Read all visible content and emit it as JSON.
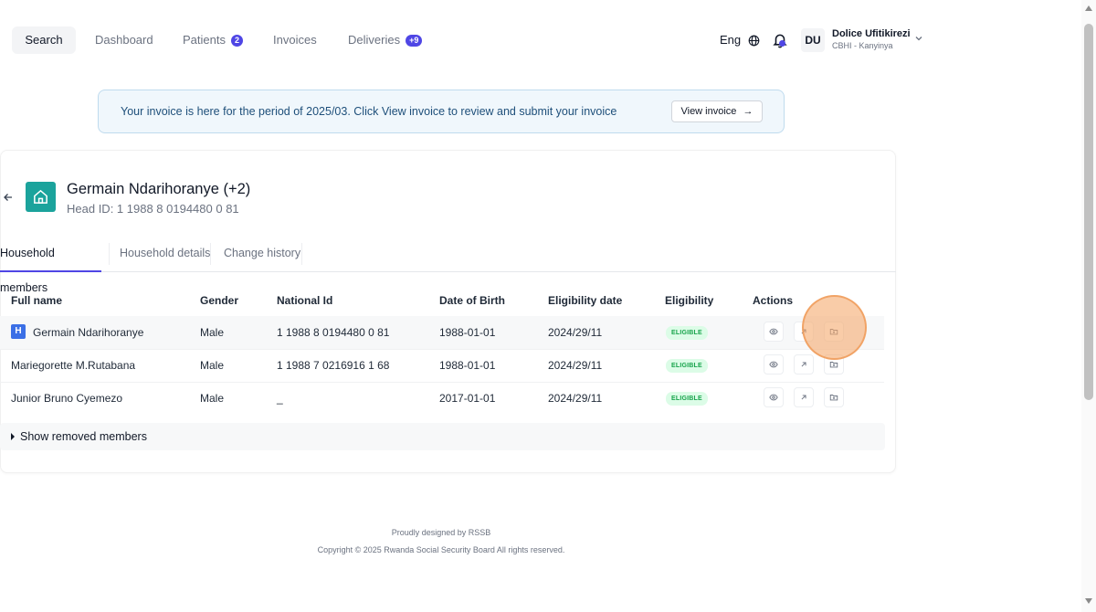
{
  "nav": {
    "search": "Search",
    "dashboard": "Dashboard",
    "patients": "Patients",
    "patients_count": "2",
    "invoices": "Invoices",
    "deliveries": "Deliveries",
    "deliveries_count": "+9",
    "language": "Eng"
  },
  "user": {
    "initials": "DU",
    "name": "Dolice Ufitikirezi",
    "role": "CBHI - Kanyinya"
  },
  "banner": {
    "message": "Your invoice is here for the period of 2025/03. Click View invoice to review and submit your invoice",
    "button": "View invoice"
  },
  "household": {
    "title": "Germain Ndarihoranye (+2)",
    "head_id": "Head ID: 1 1988 8 0194480 0 81"
  },
  "tabs": [
    "Household members",
    "Household details",
    "Change history"
  ],
  "table": {
    "headers": [
      "Full name",
      "Gender",
      "National Id",
      "Date of Birth",
      "Eligibility date",
      "Eligibility",
      "Actions"
    ],
    "rows": [
      {
        "head_badge": "H",
        "name": "Germain Ndarihoranye",
        "gender": "Male",
        "national_id": "1 1988 8 0194480 0 81",
        "dob": "1988-01-01",
        "eligibility_date": "2024/29/11",
        "eligibility": "ELIGIBLE"
      },
      {
        "name": "Mariegorette M.Rutabana",
        "gender": "Male",
        "national_id": "1 1988 7 0216916 1 68",
        "dob": "1988-01-01",
        "eligibility_date": "2024/29/11",
        "eligibility": "ELIGIBLE"
      },
      {
        "name": "Junior Bruno Cyemezo",
        "gender": "Male",
        "national_id": "_",
        "dob": "2017-01-01",
        "eligibility_date": "2024/29/11",
        "eligibility": "ELIGIBLE"
      }
    ],
    "show_removed": "Show removed members"
  },
  "footer": {
    "line1": "Proudly designed by RSSB",
    "line2": "Copyright © 2025 Rwanda Social Security Board All rights reserved."
  },
  "colors": {
    "accent": "#4f46e5",
    "household_icon": "#1ba39c",
    "eligible_bg": "#dcfce7",
    "eligible_text": "#16a34a"
  }
}
